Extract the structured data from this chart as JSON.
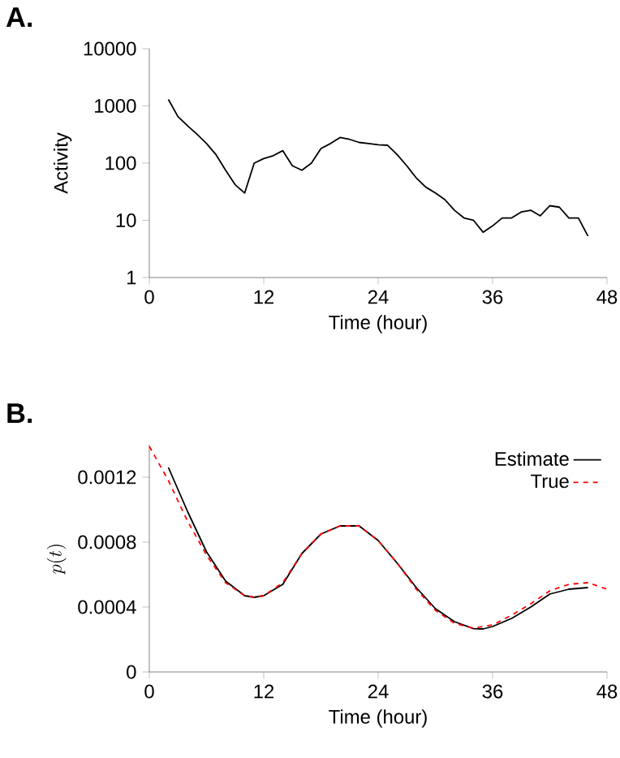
{
  "chart_data": [
    {
      "type": "line",
      "title": "A.",
      "xlabel": "Time (hour)",
      "ylabel": "Activity",
      "log": "y",
      "xlim": [
        0,
        48
      ],
      "xticks": [
        0,
        12,
        24,
        36,
        48
      ],
      "ylim": [
        1,
        10000
      ],
      "yticks": [
        1,
        10,
        100,
        1000,
        10000
      ],
      "series": [
        {
          "color": "#000000",
          "line_style": "solid",
          "x": [
            2,
            3,
            4,
            5,
            6,
            7,
            8,
            9,
            10,
            11,
            12,
            13,
            14,
            15,
            16,
            17,
            18,
            19,
            20,
            21,
            22,
            23,
            24,
            25,
            26,
            27,
            28,
            29,
            30,
            31,
            32,
            33,
            34,
            35,
            36,
            37,
            38,
            39,
            40,
            41,
            42,
            43,
            44,
            45,
            46
          ],
          "values": [
            1300,
            650,
            450,
            320,
            220,
            140,
            75,
            42,
            30,
            100,
            120,
            135,
            165,
            90,
            75,
            100,
            180,
            220,
            280,
            260,
            230,
            220,
            210,
            205,
            140,
            90,
            55,
            38,
            30,
            23,
            15,
            11,
            10,
            6.2,
            8,
            11,
            11,
            14,
            15,
            12,
            18,
            17,
            11,
            11,
            5.3
          ]
        }
      ]
    },
    {
      "type": "line",
      "title": "B.",
      "xlabel": "Time (hour)",
      "ylabel": "p(t)",
      "xlim": [
        0,
        48
      ],
      "xticks": [
        0,
        12,
        24,
        36,
        48
      ],
      "ylim": [
        0,
        0.0014
      ],
      "yticks": [
        0,
        0.0004,
        0.0008,
        0.0012
      ],
      "legend": "top right",
      "series": [
        {
          "name": "Estimate",
          "color": "#000000",
          "line_style": "solid",
          "x": [
            2,
            4,
            6,
            8,
            10,
            11,
            12,
            14,
            16,
            18,
            20,
            22,
            24,
            26,
            28,
            30,
            32,
            34,
            35,
            36,
            38,
            40,
            42,
            44,
            46
          ],
          "values": [
            0.00126,
            0.00099,
            0.00074,
            0.00056,
            0.00047,
            0.00046,
            0.00047,
            0.00054,
            0.00073,
            0.00085,
            0.0009,
            0.0009,
            0.00081,
            0.00067,
            0.00052,
            0.00039,
            0.00031,
            0.000267,
            0.000265,
            0.00028,
            0.00033,
            0.0004,
            0.00048,
            0.00051,
            0.00052
          ]
        },
        {
          "name": "True",
          "color": "#ff0000",
          "line_style": "dashed",
          "x": [
            0,
            2,
            4,
            6,
            8,
            10,
            11,
            12,
            14,
            16,
            18,
            20,
            22,
            24,
            26,
            28,
            30,
            32,
            34,
            36,
            38,
            40,
            42,
            44,
            46,
            48
          ],
          "values": [
            0.00139,
            0.00118,
            0.00093,
            0.00072,
            0.00055,
            0.00047,
            0.00046,
            0.00047,
            0.00055,
            0.00073,
            0.00085,
            0.0009,
            0.0009,
            0.00081,
            0.00067,
            0.00051,
            0.00038,
            0.0003,
            0.00027,
            0.00029,
            0.00035,
            0.00042,
            0.0005,
            0.00054,
            0.00055,
            0.00051
          ]
        }
      ]
    }
  ]
}
